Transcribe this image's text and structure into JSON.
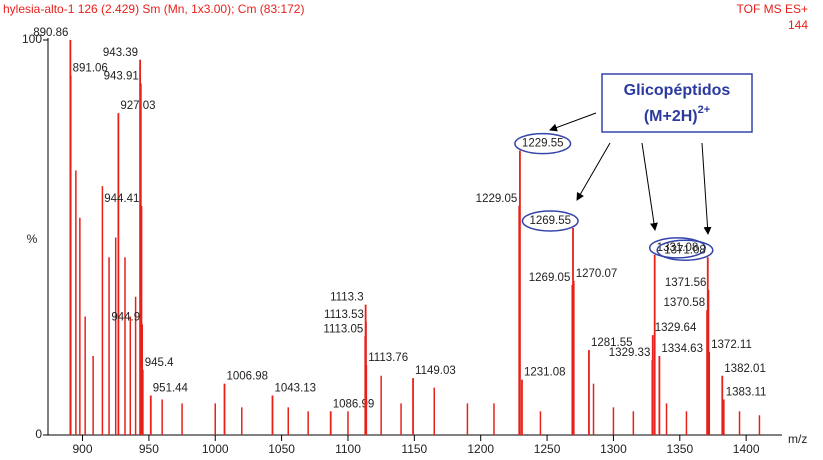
{
  "chart_data": {
    "type": "stick",
    "header_left": "hylesia-alto-1  126 (2.429) Sm (Mn, 1x3.00); Cm (83:172)",
    "header_right": "TOF MS ES+",
    "header_right_2": "144",
    "ylabel": "%",
    "xlabel": "m/z",
    "color": "#e8201a",
    "xlim": [
      874,
      1427
    ],
    "ylim": [
      0,
      100
    ],
    "xticks": [
      900,
      950,
      1000,
      1050,
      1100,
      1150,
      1200,
      1250,
      1300,
      1350,
      1400
    ],
    "yticks": [
      0,
      100
    ],
    "x": [
      890.86,
      891.06,
      927.03,
      943.39,
      943.91,
      944.41,
      944.9,
      945.4,
      951.44,
      1006.98,
      1043.13,
      1086.99,
      1113.05,
      1113.3,
      1113.53,
      1113.76,
      1149.03,
      1229.05,
      1229.55,
      1231.08,
      1269.05,
      1269.55,
      1270.07,
      1281.55,
      1329.33,
      1329.64,
      1331.08,
      1334.63,
      1370.58,
      1371.08,
      1371.56,
      1372.11,
      1382.01,
      1383.11
    ],
    "values": [
      100,
      91,
      81.5,
      95,
      89,
      58,
      28,
      16.5,
      10,
      13,
      10,
      6,
      25,
      33,
      28.6,
      17.7,
      14.4,
      58,
      72,
      14,
      38,
      52.4,
      39,
      21.5,
      19,
      25.3,
      45.6,
      20,
      31.6,
      45,
      36.7,
      21,
      15,
      9
    ],
    "highlighted": [
      18,
      21,
      26,
      29
    ],
    "minor_x": [
      895,
      898,
      902,
      908,
      915,
      920,
      925,
      932,
      936,
      940,
      960,
      975,
      1000,
      1020,
      1055,
      1070,
      1100,
      1125,
      1140,
      1165,
      1190,
      1210,
      1245,
      1285,
      1300,
      1315,
      1340,
      1355,
      1395,
      1410
    ],
    "minor_values": [
      67,
      55,
      30,
      20,
      63,
      45,
      50,
      45,
      30,
      35,
      9,
      8,
      8,
      7,
      7,
      6,
      6,
      15,
      8,
      12,
      8,
      8,
      6,
      13,
      7,
      6,
      8,
      6,
      6,
      5
    ],
    "annotation": {
      "line1": "Glicopéptidos",
      "line2": "(M+2H)",
      "sup": "2+"
    }
  }
}
